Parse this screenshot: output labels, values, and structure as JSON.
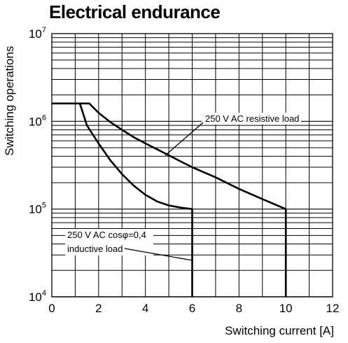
{
  "chart_data": {
    "type": "line",
    "title": "Electrical endurance",
    "xlabel": "Switching current [A]",
    "ylabel": "Switching operations",
    "xlim": [
      0,
      12
    ],
    "ylim": [
      10000,
      10000000
    ],
    "yscale": "log",
    "grid": true,
    "x_ticks": [
      {
        "value": 0,
        "label": "0"
      },
      {
        "value": 2,
        "label": "2"
      },
      {
        "value": 4,
        "label": "4"
      },
      {
        "value": 6,
        "label": "6"
      },
      {
        "value": 8,
        "label": "8"
      },
      {
        "value": 10,
        "label": "10"
      },
      {
        "value": 12,
        "label": "12"
      }
    ],
    "y_ticks": [
      {
        "value": 10000,
        "base": "10",
        "exp": "4"
      },
      {
        "value": 100000,
        "base": "10",
        "exp": "5"
      },
      {
        "value": 1000000,
        "base": "10",
        "exp": "6"
      },
      {
        "value": 10000000,
        "base": "10",
        "exp": "7"
      }
    ],
    "series": [
      {
        "name": "250 V AC resistive load",
        "points": [
          [
            0,
            1600000
          ],
          [
            1.6,
            1600000
          ],
          [
            2,
            1250000
          ],
          [
            2.5,
            980000
          ],
          [
            3,
            800000
          ],
          [
            3.5,
            660000
          ],
          [
            4,
            560000
          ],
          [
            4.5,
            480000
          ],
          [
            5,
            410000
          ],
          [
            5.5,
            350000
          ],
          [
            6,
            300000
          ],
          [
            7,
            230000
          ],
          [
            8,
            170000
          ],
          [
            9,
            130000
          ],
          [
            10,
            100000
          ],
          [
            10,
            10000
          ]
        ]
      },
      {
        "name": "250 V AC cosφ=0,4 inductive load",
        "points": [
          [
            1.2,
            1600000
          ],
          [
            1.5,
            900000
          ],
          [
            2,
            560000
          ],
          [
            2.5,
            360000
          ],
          [
            3,
            250000
          ],
          [
            3.5,
            185000
          ],
          [
            4,
            145000
          ],
          [
            4.5,
            122000
          ],
          [
            5,
            110000
          ],
          [
            5.5,
            104000
          ],
          [
            6,
            100000
          ],
          [
            6,
            10000
          ]
        ]
      }
    ],
    "annotations": [
      {
        "text": "250 V AC resistive load",
        "target_series": 0
      },
      {
        "text": "250 V AC cosφ=0,4",
        "target_series": 1
      },
      {
        "text": "inductive load",
        "target_series": 1
      }
    ]
  }
}
